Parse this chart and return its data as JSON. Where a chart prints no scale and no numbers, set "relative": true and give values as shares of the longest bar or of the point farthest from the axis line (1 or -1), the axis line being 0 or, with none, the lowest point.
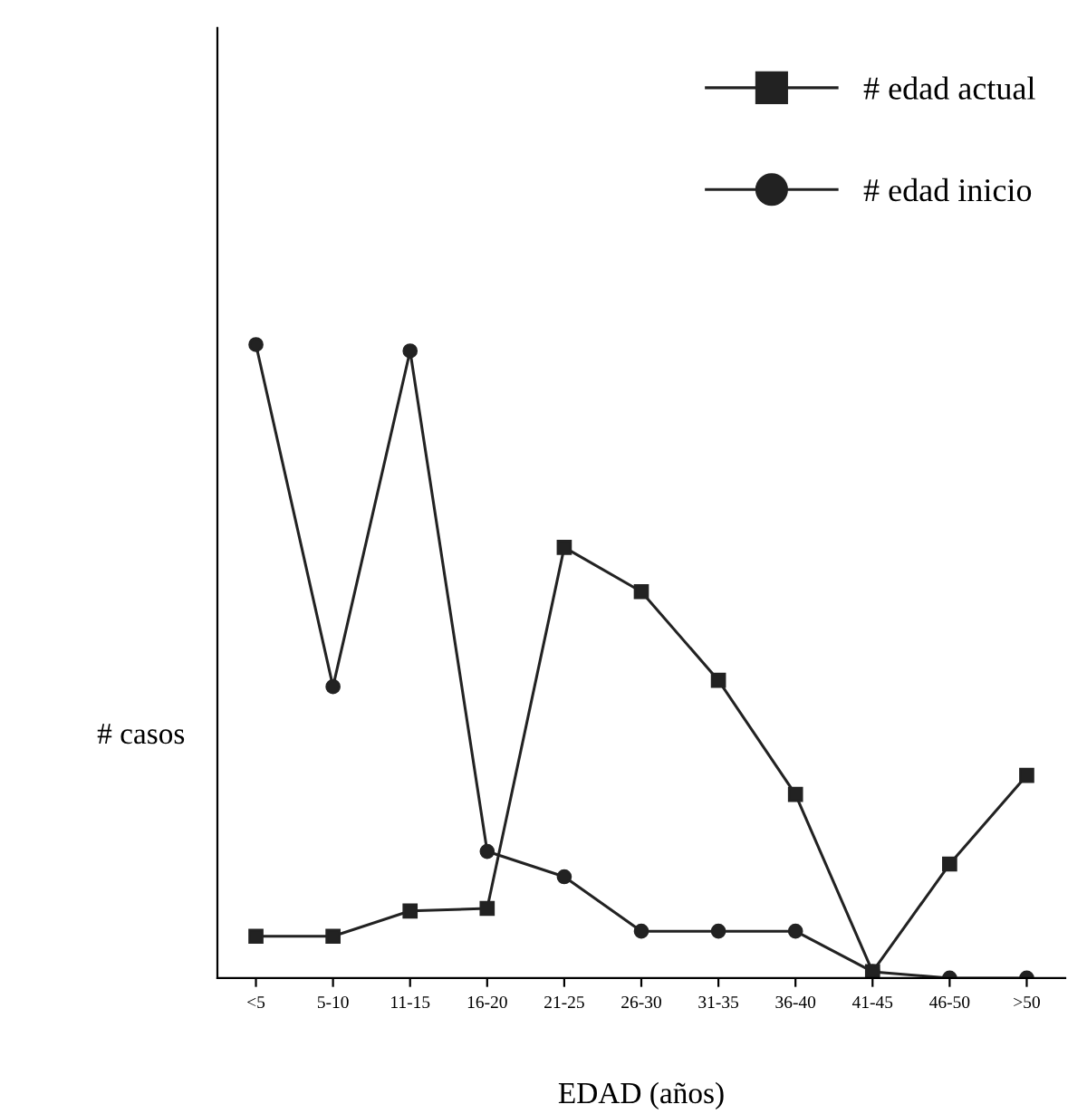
{
  "chart_data": {
    "type": "line",
    "relative": true,
    "xlabel": "EDAD (años)",
    "ylabel": "# casos",
    "categories": [
      "<5",
      "5-10",
      "11-15",
      "16-20",
      "21-25",
      "26-30",
      "31-35",
      "36-40",
      "41-45",
      "46-50",
      ">50"
    ],
    "series": [
      {
        "name": "# edad actual",
        "color": "#222222",
        "marker": "square",
        "values": [
          0.066,
          0.066,
          0.106,
          0.11,
          0.68,
          0.61,
          0.47,
          0.29,
          0.01,
          0.18,
          0.32
        ]
      },
      {
        "name": "# edad inicio",
        "color": "#222222",
        "marker": "circle",
        "values": [
          1.0,
          0.46,
          0.99,
          0.2,
          0.16,
          0.074,
          0.074,
          0.074,
          0.01,
          0.0,
          0.0
        ]
      }
    ],
    "legend": "top right",
    "grid": false,
    "line_style": "solid"
  }
}
